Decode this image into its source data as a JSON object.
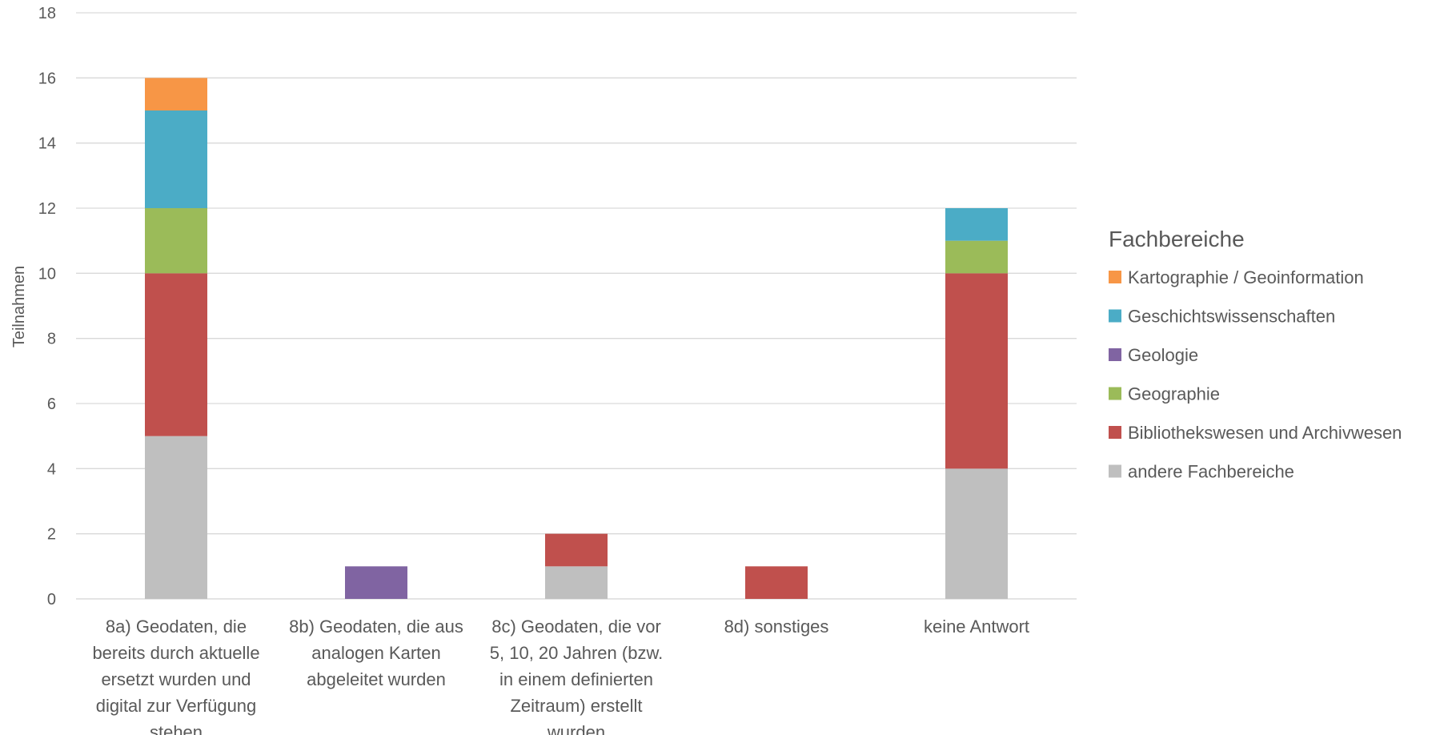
{
  "chart_data": {
    "type": "bar",
    "stacked": true,
    "ylabel": "Teilnahmen",
    "ylim": [
      0,
      18
    ],
    "ytick_step": 2,
    "grid": true,
    "legend_title": "Fachbereiche",
    "legend_position": "right",
    "categories": [
      [
        "8a) Geodaten, die",
        "bereits durch aktuelle",
        "ersetzt wurden und",
        "digital zur Verfügung",
        "stehen"
      ],
      [
        "8b) Geodaten, die aus",
        "analogen Karten",
        "abgeleitet wurden"
      ],
      [
        "8c) Geodaten, die vor",
        "5, 10, 20 Jahren (bzw.",
        "in einem definierten",
        "Zeitraum) erstellt",
        "wurden"
      ],
      [
        "8d) sonstiges"
      ],
      [
        "keine Antwort"
      ]
    ],
    "series": [
      {
        "name": "andere Fachbereiche",
        "color": "#bfbfbf",
        "values": [
          5,
          0,
          1,
          0,
          4
        ]
      },
      {
        "name": "Bibliothekswesen und Archivwesen",
        "color": "#c0504d",
        "values": [
          5,
          0,
          1,
          1,
          6
        ]
      },
      {
        "name": "Geographie",
        "color": "#9bbb59",
        "values": [
          2,
          0,
          0,
          0,
          1
        ]
      },
      {
        "name": "Geologie",
        "color": "#8064a2",
        "values": [
          0,
          1,
          0,
          0,
          0
        ]
      },
      {
        "name": "Geschichtswissenschaften",
        "color": "#4bacc6",
        "values": [
          3,
          0,
          0,
          0,
          1
        ]
      },
      {
        "name": "Kartographie / Geoinformation",
        "color": "#f79646",
        "values": [
          1,
          0,
          0,
          0,
          0
        ]
      }
    ],
    "legend_order": [
      "Kartographie / Geoinformation",
      "Geschichtswissenschaften",
      "Geologie",
      "Geographie",
      "Bibliothekswesen und Archivwesen",
      "andere Fachbereiche"
    ]
  }
}
